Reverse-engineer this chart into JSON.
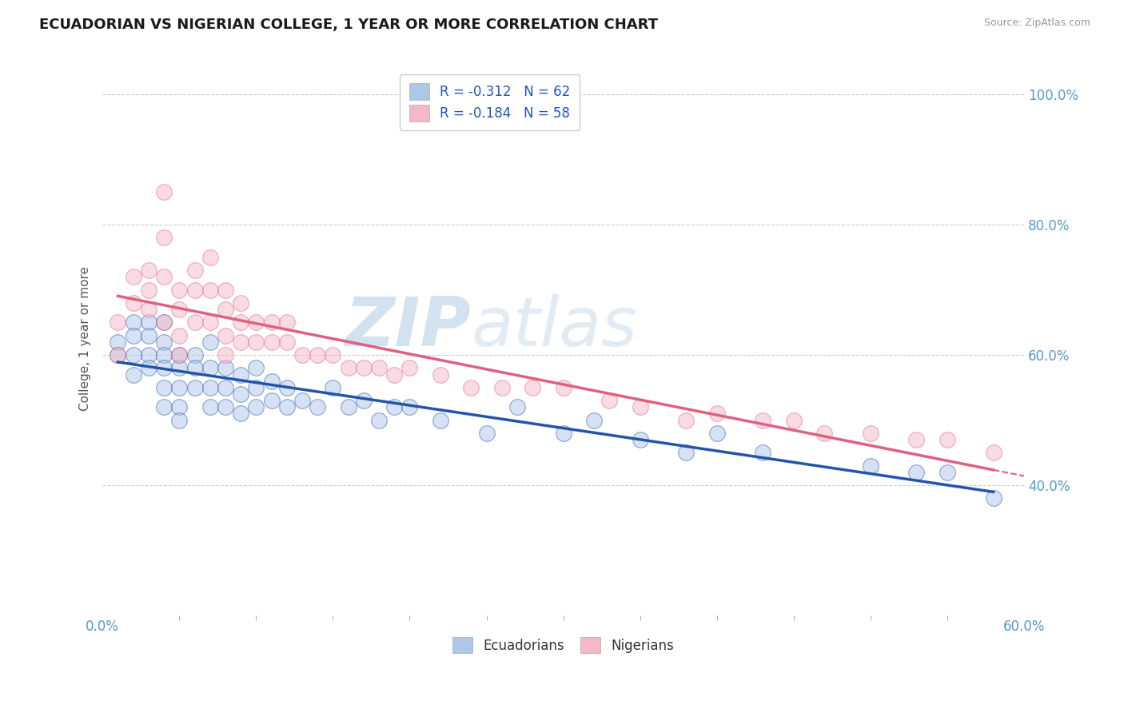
{
  "title": "ECUADORIAN VS NIGERIAN COLLEGE, 1 YEAR OR MORE CORRELATION CHART",
  "source": "Source: ZipAtlas.com",
  "ylabel": "College, 1 year or more",
  "xlim": [
    0.0,
    0.6
  ],
  "ylim": [
    0.2,
    1.05
  ],
  "ytick_positions": [
    0.4,
    0.6,
    0.8,
    1.0
  ],
  "ytick_labels": [
    "40.0%",
    "60.0%",
    "80.0%",
    "100.0%"
  ],
  "xtick_positions": [
    0.0,
    0.6
  ],
  "xtick_labels": [
    "0.0%",
    "60.0%"
  ],
  "legend_r1": "R = -0.312",
  "legend_n1": "N = 62",
  "legend_r2": "R = -0.184",
  "legend_n2": "N = 58",
  "color_blue": "#aec6e8",
  "color_pink": "#f5b8c8",
  "line_blue": "#2255aa",
  "line_pink": "#e06080",
  "watermark_zip": "ZIP",
  "watermark_atlas": "atlas",
  "background": "#ffffff",
  "grid_color": "#cccccc",
  "ecuadorians_x": [
    0.01,
    0.01,
    0.02,
    0.02,
    0.02,
    0.02,
    0.03,
    0.03,
    0.03,
    0.03,
    0.04,
    0.04,
    0.04,
    0.04,
    0.04,
    0.04,
    0.05,
    0.05,
    0.05,
    0.05,
    0.05,
    0.06,
    0.06,
    0.06,
    0.07,
    0.07,
    0.07,
    0.07,
    0.08,
    0.08,
    0.08,
    0.09,
    0.09,
    0.09,
    0.1,
    0.1,
    0.1,
    0.11,
    0.11,
    0.12,
    0.12,
    0.13,
    0.14,
    0.15,
    0.16,
    0.17,
    0.18,
    0.19,
    0.2,
    0.22,
    0.25,
    0.27,
    0.3,
    0.32,
    0.35,
    0.38,
    0.4,
    0.43,
    0.5,
    0.53,
    0.55,
    0.58
  ],
  "ecuadorians_y": [
    0.62,
    0.6,
    0.65,
    0.63,
    0.6,
    0.57,
    0.65,
    0.63,
    0.6,
    0.58,
    0.65,
    0.62,
    0.6,
    0.58,
    0.55,
    0.52,
    0.6,
    0.58,
    0.55,
    0.52,
    0.5,
    0.6,
    0.58,
    0.55,
    0.62,
    0.58,
    0.55,
    0.52,
    0.58,
    0.55,
    0.52,
    0.57,
    0.54,
    0.51,
    0.58,
    0.55,
    0.52,
    0.56,
    0.53,
    0.55,
    0.52,
    0.53,
    0.52,
    0.55,
    0.52,
    0.53,
    0.5,
    0.52,
    0.52,
    0.5,
    0.48,
    0.52,
    0.48,
    0.5,
    0.47,
    0.45,
    0.48,
    0.45,
    0.43,
    0.42,
    0.42,
    0.38
  ],
  "nigerians_x": [
    0.01,
    0.01,
    0.02,
    0.02,
    0.03,
    0.03,
    0.03,
    0.04,
    0.04,
    0.04,
    0.04,
    0.05,
    0.05,
    0.05,
    0.05,
    0.06,
    0.06,
    0.06,
    0.07,
    0.07,
    0.07,
    0.08,
    0.08,
    0.08,
    0.08,
    0.09,
    0.09,
    0.09,
    0.1,
    0.1,
    0.11,
    0.11,
    0.12,
    0.12,
    0.13,
    0.14,
    0.15,
    0.16,
    0.17,
    0.18,
    0.19,
    0.2,
    0.22,
    0.24,
    0.26,
    0.28,
    0.3,
    0.33,
    0.35,
    0.38,
    0.4,
    0.43,
    0.45,
    0.47,
    0.5,
    0.53,
    0.55,
    0.58
  ],
  "nigerians_y": [
    0.65,
    0.6,
    0.72,
    0.68,
    0.73,
    0.7,
    0.67,
    0.85,
    0.78,
    0.72,
    0.65,
    0.7,
    0.67,
    0.63,
    0.6,
    0.73,
    0.7,
    0.65,
    0.75,
    0.7,
    0.65,
    0.7,
    0.67,
    0.63,
    0.6,
    0.68,
    0.65,
    0.62,
    0.65,
    0.62,
    0.65,
    0.62,
    0.65,
    0.62,
    0.6,
    0.6,
    0.6,
    0.58,
    0.58,
    0.58,
    0.57,
    0.58,
    0.57,
    0.55,
    0.55,
    0.55,
    0.55,
    0.53,
    0.52,
    0.5,
    0.51,
    0.5,
    0.5,
    0.48,
    0.48,
    0.47,
    0.47,
    0.45
  ]
}
